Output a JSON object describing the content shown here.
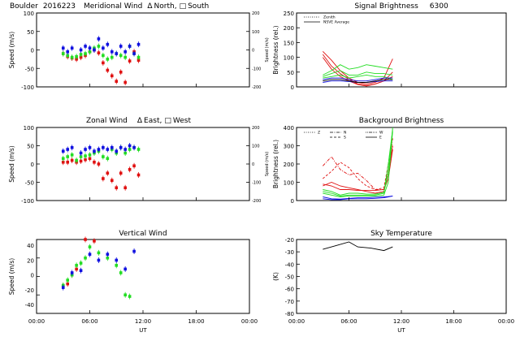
{
  "x_ticks": [
    "00:00",
    "06:00",
    "12:00",
    "18:00",
    "00:00"
  ],
  "x_axis_label": "UT",
  "colors": {
    "red": "#e01010",
    "green": "#22dd22",
    "blue": "#1010e0",
    "black": "#000000"
  },
  "chart_data": [
    {
      "id": "meridional",
      "type": "scatter",
      "title": {
        "site": "Boulder",
        "date": "2016223",
        "name": "Meridional Wind",
        "north_sym": "Δ",
        "north": "North,",
        "south_sym": "□",
        "south": "South"
      },
      "ylabel": "Speed (m/s)",
      "ylim": [
        -100,
        100
      ],
      "yticks": [
        "100",
        "50",
        "0",
        "-50",
        "-100"
      ],
      "ylabel_right": "Speed (m/s)",
      "ylim_right": [
        -200,
        200
      ],
      "yticks_right": [
        "200",
        "100",
        "0",
        "-100",
        "-200"
      ],
      "xlim": [
        0,
        24
      ],
      "series": [
        {
          "color": "red",
          "x": [
            3.0,
            3.5,
            4.0,
            4.5,
            5.0,
            5.5,
            6.0,
            6.5,
            7.0,
            7.5,
            8.0,
            8.5,
            9.0,
            9.5,
            10.0,
            10.5,
            11.0,
            11.5
          ],
          "y": [
            -10,
            -18,
            -22,
            -25,
            -20,
            -15,
            -5,
            0,
            -8,
            -35,
            -55,
            -70,
            -85,
            -60,
            -88,
            -30,
            -5,
            -28
          ]
        },
        {
          "color": "green",
          "x": [
            3.0,
            3.5,
            4.0,
            4.5,
            5.0,
            5.5,
            6.0,
            6.5,
            7.0,
            7.5,
            8.0,
            8.5,
            9.0,
            9.5,
            10.0,
            10.5,
            11.0,
            11.5
          ],
          "y": [
            -10,
            -15,
            -20,
            -18,
            -12,
            -10,
            -5,
            5,
            10,
            -15,
            -25,
            -20,
            -10,
            -15,
            -20,
            10,
            -10,
            -20
          ]
        },
        {
          "color": "blue",
          "x": [
            3.0,
            3.5,
            4.0,
            5.0,
            5.5,
            6.0,
            6.5,
            7.0,
            7.5,
            8.0,
            8.5,
            9.0,
            9.5,
            10.0,
            10.5,
            11.0,
            11.5
          ],
          "y": [
            5,
            -5,
            5,
            0,
            10,
            5,
            0,
            30,
            5,
            15,
            -5,
            -10,
            10,
            -5,
            10,
            -10,
            15
          ]
        }
      ]
    },
    {
      "id": "zonal",
      "type": "scatter",
      "title": {
        "name": "Zonal Wind",
        "east_sym": "Δ",
        "east": "East,",
        "west_sym": "□",
        "west": "West"
      },
      "ylabel": "Speed (m/s)",
      "ylim": [
        -100,
        100
      ],
      "yticks": [
        "100",
        "50",
        "0",
        "-50",
        "-100"
      ],
      "ylabel_right": "Speed (m/s)",
      "ylim_right": [
        -200,
        200
      ],
      "yticks_right": [
        "200",
        "100",
        "0",
        "-100",
        "-200"
      ],
      "xlim": [
        0,
        24
      ],
      "series": [
        {
          "color": "red",
          "x": [
            3.0,
            3.5,
            4.0,
            4.5,
            5.0,
            5.5,
            6.0,
            6.5,
            7.0,
            7.5,
            8.0,
            8.5,
            9.0,
            9.5,
            10.0,
            10.5,
            11.0,
            11.5
          ],
          "y": [
            5,
            5,
            10,
            5,
            8,
            12,
            15,
            5,
            0,
            -40,
            -25,
            -45,
            -65,
            -25,
            -65,
            -15,
            -5,
            -30
          ]
        },
        {
          "color": "green",
          "x": [
            3.0,
            3.5,
            4.0,
            4.5,
            5.0,
            5.5,
            6.0,
            6.5,
            7.0,
            7.5,
            8.0,
            8.5,
            9.0,
            9.5,
            10.0,
            10.5,
            11.0,
            11.5
          ],
          "y": [
            15,
            20,
            25,
            10,
            20,
            22,
            25,
            30,
            35,
            20,
            15,
            40,
            30,
            45,
            30,
            40,
            45,
            40
          ]
        },
        {
          "color": "blue",
          "x": [
            3.0,
            3.5,
            4.0,
            5.0,
            5.5,
            6.0,
            6.5,
            7.0,
            7.5,
            8.0,
            8.5,
            9.0,
            9.5,
            10.0,
            10.5,
            11.0
          ],
          "y": [
            35,
            40,
            45,
            30,
            40,
            45,
            35,
            40,
            45,
            40,
            45,
            35,
            45,
            40,
            50,
            45
          ]
        }
      ]
    },
    {
      "id": "vertical",
      "type": "scatter",
      "title": {
        "name": "Vertical Wind"
      },
      "ylabel": "Speed (m/s)",
      "ylim": [
        -50,
        50
      ],
      "yticks": [
        "40",
        "20",
        "0",
        "-20",
        "-40"
      ],
      "xlim": [
        0,
        24
      ],
      "series": [
        {
          "color": "red",
          "x": [
            3.0,
            3.5,
            4.0,
            4.5,
            5.5,
            6.5
          ],
          "y": [
            -13,
            -10,
            2,
            10,
            50,
            48
          ]
        },
        {
          "color": "green",
          "x": [
            3.0,
            3.5,
            4.0,
            4.5,
            5.0,
            5.5,
            6.0,
            7.0,
            8.0,
            9.0,
            9.5,
            10.0,
            10.5
          ],
          "y": [
            -12,
            -5,
            2,
            15,
            18,
            25,
            40,
            32,
            25,
            15,
            5,
            -25,
            -27
          ]
        },
        {
          "color": "blue",
          "x": [
            3.0,
            4.0,
            5.0,
            6.0,
            7.0,
            8.0,
            9.0,
            10.0,
            11.0
          ],
          "y": [
            -15,
            5,
            8,
            30,
            22,
            30,
            22,
            10,
            34
          ]
        }
      ]
    },
    {
      "id": "signal",
      "type": "line",
      "title": {
        "name": "Signal Brightness",
        "wavelength": "6300"
      },
      "legend": [
        {
          "label": "Zenith",
          "style": "dotted"
        },
        {
          "label": "NSVE Average",
          "style": "solid"
        }
      ],
      "ylabel": "Brightness (rel.)",
      "ylim": [
        0,
        250
      ],
      "yticks": [
        "250",
        "200",
        "150",
        "100",
        "50",
        "0"
      ],
      "xlim": [
        0,
        24
      ],
      "series": [
        {
          "color": "red",
          "x": [
            3,
            4,
            5,
            6,
            7,
            8,
            9,
            10,
            11
          ],
          "y": [
            120,
            90,
            55,
            30,
            15,
            10,
            15,
            30,
            95
          ]
        },
        {
          "color": "red",
          "x": [
            3,
            4,
            5,
            6,
            7,
            8,
            9,
            10,
            11
          ],
          "y": [
            110,
            70,
            45,
            25,
            10,
            5,
            10,
            20,
            50
          ]
        },
        {
          "color": "red",
          "x": [
            3,
            4,
            5,
            6,
            7,
            8,
            9,
            10,
            11
          ],
          "y": [
            100,
            60,
            35,
            20,
            8,
            3,
            10,
            20,
            35
          ]
        },
        {
          "color": "green",
          "x": [
            3,
            4,
            5,
            6,
            7,
            8,
            9,
            10,
            11
          ],
          "y": [
            40,
            55,
            75,
            60,
            65,
            75,
            70,
            65,
            60
          ]
        },
        {
          "color": "green",
          "x": [
            3,
            4,
            5,
            6,
            7,
            8,
            9,
            10,
            11
          ],
          "y": [
            35,
            45,
            55,
            40,
            40,
            50,
            45,
            45,
            40
          ]
        },
        {
          "color": "green",
          "x": [
            3,
            4,
            5,
            6,
            7,
            8,
            9,
            10,
            11
          ],
          "y": [
            30,
            35,
            40,
            30,
            35,
            40,
            35,
            35,
            25
          ]
        },
        {
          "color": "blue",
          "x": [
            3,
            4,
            5,
            6,
            7,
            8,
            9,
            10,
            11
          ],
          "y": [
            25,
            30,
            30,
            25,
            20,
            20,
            25,
            30,
            30
          ]
        },
        {
          "color": "blue",
          "x": [
            3,
            4,
            5,
            6,
            7,
            8,
            9,
            10,
            11
          ],
          "y": [
            15,
            20,
            20,
            18,
            15,
            15,
            18,
            20,
            20
          ]
        },
        {
          "color": "black",
          "x": [
            3,
            4,
            5,
            6,
            7,
            8,
            9,
            10,
            11
          ],
          "y": [
            20,
            25,
            25,
            20,
            15,
            15,
            20,
            25,
            25
          ]
        }
      ]
    },
    {
      "id": "background",
      "type": "line",
      "title": {
        "name": "Background Brightness"
      },
      "legend": [
        {
          "label": "Z",
          "style": "dotted"
        },
        {
          "label": "N",
          "style": "dashdot"
        },
        {
          "label": "S",
          "style": "dashed"
        },
        {
          "label": "W",
          "style": "longdash"
        },
        {
          "label": "E",
          "style": "solid"
        }
      ],
      "ylabel": "Brightness (rel.)",
      "ylim": [
        0,
        400
      ],
      "yticks": [
        "400",
        "300",
        "200",
        "100",
        "0"
      ],
      "xlim": [
        0,
        24
      ],
      "series": [
        {
          "color": "red",
          "style": "dashdot",
          "x": [
            3,
            4,
            5,
            6,
            7,
            8,
            9,
            10,
            10.5,
            11
          ],
          "y": [
            190,
            240,
            170,
            140,
            150,
            110,
            60,
            60,
            160,
            340
          ]
        },
        {
          "color": "red",
          "style": "dashed",
          "x": [
            3,
            4,
            5,
            6,
            7,
            8,
            9,
            10,
            10.5,
            11
          ],
          "y": [
            120,
            160,
            210,
            180,
            120,
            80,
            60,
            70,
            200,
            350
          ]
        },
        {
          "color": "red",
          "style": "solid",
          "x": [
            3,
            4,
            5,
            6,
            7,
            8,
            9,
            10,
            10.5,
            11
          ],
          "y": [
            80,
            100,
            80,
            70,
            60,
            50,
            40,
            50,
            150,
            300
          ]
        },
        {
          "color": "red",
          "style": "solid",
          "x": [
            3,
            4,
            5,
            6,
            7,
            8,
            9,
            10,
            10.5,
            11
          ],
          "y": [
            90,
            80,
            60,
            60,
            55,
            55,
            55,
            60,
            120,
            280
          ]
        },
        {
          "color": "green",
          "style": "solid",
          "x": [
            3,
            4,
            5,
            6,
            7,
            8,
            9,
            10,
            10.5,
            11
          ],
          "y": [
            60,
            50,
            30,
            40,
            40,
            35,
            35,
            45,
            150,
            400
          ]
        },
        {
          "color": "green",
          "style": "solid",
          "x": [
            3,
            4,
            5,
            6,
            7,
            8,
            9,
            10,
            10.5,
            11
          ],
          "y": [
            50,
            40,
            25,
            30,
            30,
            30,
            30,
            40,
            200,
            390
          ]
        },
        {
          "color": "green",
          "style": "solid",
          "x": [
            3,
            4,
            5,
            6,
            7,
            8,
            9,
            10,
            10.5,
            11
          ],
          "y": [
            40,
            30,
            20,
            25,
            25,
            25,
            25,
            30,
            100,
            380
          ]
        },
        {
          "color": "blue",
          "style": "solid",
          "x": [
            3,
            4,
            5,
            6,
            7,
            8,
            9,
            10,
            10.5,
            11
          ],
          "y": [
            10,
            5,
            5,
            10,
            10,
            10,
            12,
            15,
            20,
            25
          ]
        },
        {
          "color": "blue",
          "style": "solid",
          "x": [
            3,
            4,
            5,
            6,
            7,
            8,
            9,
            10,
            10.5,
            11
          ],
          "y": [
            20,
            10,
            8,
            12,
            15,
            15,
            18,
            20,
            22,
            25
          ]
        }
      ]
    },
    {
      "id": "skytemp",
      "type": "line",
      "title": {
        "name": "Sky Temperature"
      },
      "ylabel": "(K)",
      "ylim": [
        -80,
        -20
      ],
      "yticks": [
        "-20",
        "-30",
        "-40",
        "-50",
        "-60",
        "-70",
        "-80"
      ],
      "xlim": [
        0,
        24
      ],
      "series": [
        {
          "color": "black",
          "x": [
            3,
            4.5,
            6,
            7,
            8.5,
            10,
            11
          ],
          "y": [
            -28,
            -25,
            -22,
            -26,
            -27,
            -29,
            -26
          ]
        }
      ]
    }
  ]
}
